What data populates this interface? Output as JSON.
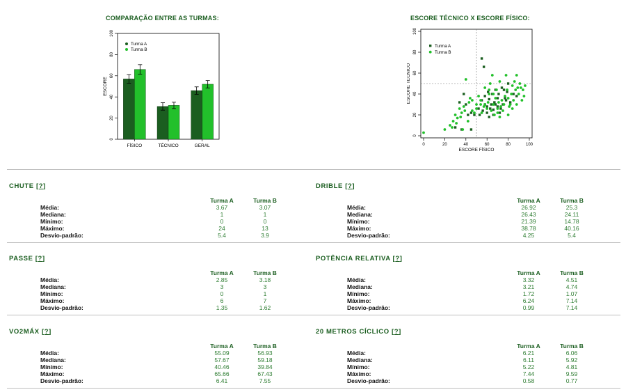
{
  "charts": {
    "bar_title": "COMPARAÇÃO ENTRE AS TURMAS:",
    "scatter_title": "ESCORE TÉCNICO X ESCORE FÍSICO:"
  },
  "colors": {
    "turma_a": "#1b5e20",
    "turma_b": "#22c02b",
    "accent": "#1b5e20",
    "value": "#2e7d32"
  },
  "chart_data": [
    {
      "type": "bar",
      "categories": [
        "FÍSICO",
        "TÉCNICO",
        "GERAL"
      ],
      "series": [
        {
          "name": "Turma A",
          "values": [
            57,
            31,
            46
          ],
          "errors": [
            4,
            3.5,
            3.5
          ]
        },
        {
          "name": "Turma B",
          "values": [
            66,
            32,
            52
          ],
          "errors": [
            4.5,
            3,
            3.5
          ]
        }
      ],
      "title": "COMPARAÇÃO ENTRE AS TURMAS:",
      "ylabel": "ESCORE",
      "ylim": [
        0,
        100
      ],
      "yticks": [
        0,
        20,
        40,
        60,
        80,
        100
      ],
      "legend": "top-left"
    },
    {
      "type": "scatter",
      "title": "ESCORE TÉCNICO X ESCORE FÍSICO:",
      "xlabel": "ESCORE FÍSICO",
      "ylabel": "ESCORE TÉCNICO",
      "xlim": [
        0,
        100
      ],
      "ylim": [
        0,
        100
      ],
      "xticks": [
        0,
        20,
        40,
        60,
        80,
        100
      ],
      "yticks": [
        0,
        20,
        40,
        60,
        80,
        100
      ],
      "reference_lines": {
        "x": 50,
        "y": 50
      },
      "legend": "top-left",
      "series": [
        {
          "name": "Turma A",
          "marker": "square",
          "points": [
            [
              55,
              74
            ],
            [
              57,
              66
            ],
            [
              40,
              30
            ],
            [
              34,
              32
            ],
            [
              45,
              22
            ],
            [
              48,
              20
            ],
            [
              52,
              26
            ],
            [
              55,
              34
            ],
            [
              58,
              38
            ],
            [
              60,
              28
            ],
            [
              60,
              22
            ],
            [
              62,
              35
            ],
            [
              62,
              18
            ],
            [
              64,
              30
            ],
            [
              65,
              40
            ],
            [
              66,
              25
            ],
            [
              67,
              32
            ],
            [
              68,
              44
            ],
            [
              70,
              28
            ],
            [
              70,
              36
            ],
            [
              72,
              22
            ],
            [
              74,
              46
            ],
            [
              75,
              30
            ],
            [
              77,
              36
            ],
            [
              79,
              42
            ],
            [
              80,
              50
            ],
            [
              82,
              32
            ],
            [
              85,
              40
            ],
            [
              88,
              38
            ],
            [
              38,
              40
            ],
            [
              42,
              20
            ],
            [
              30,
              8
            ],
            [
              36,
              6
            ],
            [
              45,
              6
            ],
            [
              53,
              20
            ],
            [
              56,
              24
            ],
            [
              58,
              30
            ],
            [
              61,
              42
            ],
            [
              63,
              26
            ],
            [
              66,
              20
            ],
            [
              68,
              30
            ],
            [
              71,
              40
            ],
            [
              73,
              26
            ],
            [
              76,
              44
            ],
            [
              78,
              34
            ]
          ]
        },
        {
          "name": "Turma B",
          "marker": "circle",
          "points": [
            [
              0,
              3
            ],
            [
              20,
              6
            ],
            [
              25,
              10
            ],
            [
              28,
              14
            ],
            [
              30,
              20
            ],
            [
              32,
              17
            ],
            [
              34,
              26
            ],
            [
              36,
              22
            ],
            [
              38,
              28
            ],
            [
              40,
              54
            ],
            [
              42,
              14
            ],
            [
              44,
              36
            ],
            [
              46,
              24
            ],
            [
              48,
              22
            ],
            [
              50,
              30
            ],
            [
              52,
              38
            ],
            [
              54,
              34
            ],
            [
              55,
              22
            ],
            [
              57,
              28
            ],
            [
              58,
              46
            ],
            [
              60,
              26
            ],
            [
              61,
              32
            ],
            [
              62,
              40
            ],
            [
              63,
              50
            ],
            [
              64,
              24
            ],
            [
              65,
              58
            ],
            [
              66,
              30
            ],
            [
              67,
              20
            ],
            [
              68,
              36
            ],
            [
              69,
              44
            ],
            [
              70,
              26
            ],
            [
              71,
              32
            ],
            [
              72,
              52
            ],
            [
              73,
              28
            ],
            [
              74,
              34
            ],
            [
              75,
              24
            ],
            [
              76,
              30
            ],
            [
              77,
              38
            ],
            [
              78,
              58
            ],
            [
              79,
              44
            ],
            [
              80,
              36
            ],
            [
              81,
              28
            ],
            [
              82,
              30
            ],
            [
              83,
              40
            ],
            [
              84,
              48
            ],
            [
              85,
              34
            ],
            [
              86,
              52
            ],
            [
              87,
              44
            ],
            [
              88,
              58
            ],
            [
              89,
              46
            ],
            [
              90,
              40
            ],
            [
              91,
              50
            ],
            [
              92,
              46
            ],
            [
              93,
              34
            ],
            [
              94,
              44
            ],
            [
              95,
              38
            ],
            [
              96,
              48
            ],
            [
              70,
              22
            ],
            [
              72,
              18
            ],
            [
              66,
              40
            ],
            [
              62,
              44
            ],
            [
              58,
              30
            ],
            [
              54,
              30
            ],
            [
              50,
              26
            ],
            [
              46,
              34
            ],
            [
              43,
              32
            ],
            [
              39,
              24
            ],
            [
              35,
              18
            ],
            [
              31,
              12
            ],
            [
              27,
              8
            ],
            [
              37,
              6
            ],
            [
              80,
              20
            ],
            [
              84,
              26
            ],
            [
              88,
              30
            ]
          ]
        }
      ]
    }
  ],
  "stats": {
    "col_a": "Turma A",
    "col_b": "Turma B",
    "help": "?",
    "labels": [
      "Média:",
      "Mediana:",
      "Mínimo:",
      "Máximo:",
      "Desvio-padrão:"
    ],
    "blocks": [
      {
        "title": "CHUTE",
        "a": [
          "3.67",
          "1",
          "0",
          "24",
          "5.4"
        ],
        "b": [
          "3.07",
          "1",
          "0",
          "13",
          "3.9"
        ]
      },
      {
        "title": "DRIBLE",
        "a": [
          "26.92",
          "26.43",
          "21.39",
          "38.78",
          "4.25"
        ],
        "b": [
          "25.3",
          "24.11",
          "14.78",
          "40.16",
          "5.4"
        ]
      },
      {
        "title": "PASSE",
        "a": [
          "2.85",
          "3",
          "0",
          "6",
          "1.35"
        ],
        "b": [
          "3.18",
          "3",
          "1",
          "7",
          "1.62"
        ]
      },
      {
        "title": "POTÊNCIA RELATIVA",
        "a": [
          "3.32",
          "3.21",
          "1.72",
          "6.24",
          "0.99"
        ],
        "b": [
          "4.51",
          "4.74",
          "1.07",
          "7.14",
          "7.14"
        ]
      },
      {
        "title": "VO2MÁX",
        "a": [
          "55.09",
          "57.67",
          "40.46",
          "65.66",
          "6.41"
        ],
        "b": [
          "56.93",
          "59.18",
          "39.84",
          "67.43",
          "7.55"
        ]
      },
      {
        "title": "20 METROS CÍCLICO",
        "a": [
          "6.21",
          "6.11",
          "5.22",
          "7.44",
          "0.58"
        ],
        "b": [
          "6.06",
          "5.92",
          "4.81",
          "9.59",
          "0.77"
        ]
      }
    ]
  }
}
